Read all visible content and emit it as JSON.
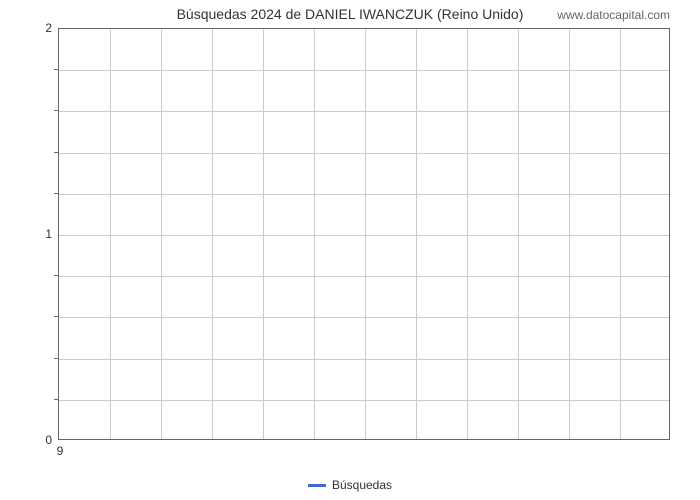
{
  "chart": {
    "type": "line",
    "title": "Búsquedas 2024 de DANIEL IWANCZUK (Reino Unido)",
    "site_label": "www.datocapital.com",
    "background_color": "#ffffff",
    "border_color": "#666666",
    "grid_color": "#cccccc",
    "title_fontsize": 14,
    "label_fontsize": 12,
    "title_color": "#333333",
    "label_color": "#333333",
    "y_axis": {
      "min": 0,
      "max": 2,
      "major_ticks": [
        0,
        1,
        2
      ],
      "minor_tick_count": 4
    },
    "x_axis": {
      "labels": [
        "9"
      ],
      "vertical_gridlines": 12
    },
    "series": [
      {
        "name": "Búsquedas",
        "color": "#4169cc",
        "line_width": 3,
        "data": []
      }
    ],
    "legend": {
      "position": "bottom",
      "items": [
        {
          "label": "Búsquedas",
          "color": "#4169cc"
        }
      ]
    }
  }
}
